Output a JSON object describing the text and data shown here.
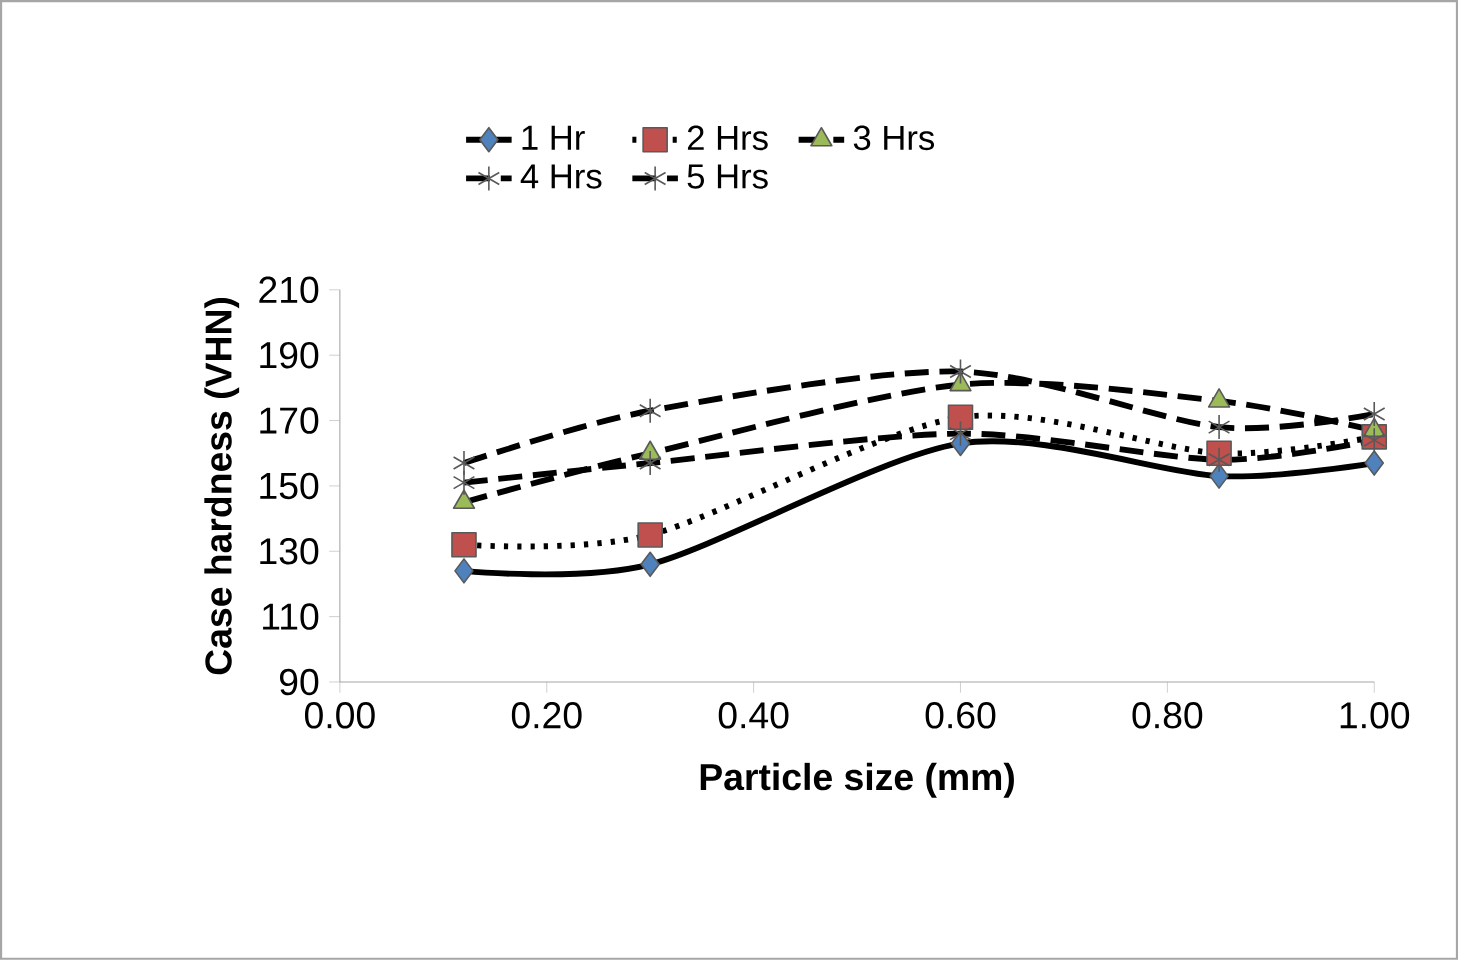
{
  "chart_data": {
    "type": "line",
    "xlabel": "Particle size (mm)",
    "ylabel": "Case hardness (VHN)",
    "x": [
      0.12,
      0.3,
      0.6,
      0.85,
      1.0
    ],
    "series": [
      {
        "name": "1 Hr",
        "color": "#4f81bd",
        "marker": "diamond",
        "line_style": "solid",
        "values": [
          124,
          126,
          163,
          153,
          157
        ]
      },
      {
        "name": "2 Hrs",
        "color": "#c0504d",
        "marker": "square",
        "line_style": "dotted",
        "values": [
          132,
          135,
          171,
          160,
          165
        ]
      },
      {
        "name": "3 Hrs",
        "color": "#9bbb59",
        "marker": "triangle",
        "line_style": "dashed",
        "values": [
          145,
          160,
          181,
          176,
          167
        ]
      },
      {
        "name": "4 Hrs",
        "color": "#000000",
        "marker": "cross",
        "line_style": "dashed",
        "values": [
          151,
          157,
          166,
          158,
          164
        ]
      },
      {
        "name": "5 Hrs",
        "color": "#000000",
        "marker": "cross",
        "line_style": "dashed",
        "values": [
          157,
          173,
          185,
          168,
          172
        ]
      }
    ],
    "xlim": [
      0,
      1
    ],
    "xticks": [
      {
        "value": 0,
        "label": "0.00"
      },
      {
        "value": 0.2,
        "label": "0.20"
      },
      {
        "value": 0.4,
        "label": "0.40"
      },
      {
        "value": 0.6,
        "label": "0.60"
      },
      {
        "value": 0.8,
        "label": "0.80"
      },
      {
        "value": 1.0,
        "label": "1.00"
      }
    ],
    "ylim": [
      90,
      210
    ],
    "yticks": [
      90,
      110,
      130,
      150,
      170,
      190,
      210
    ],
    "grid": false,
    "legend": "top"
  }
}
